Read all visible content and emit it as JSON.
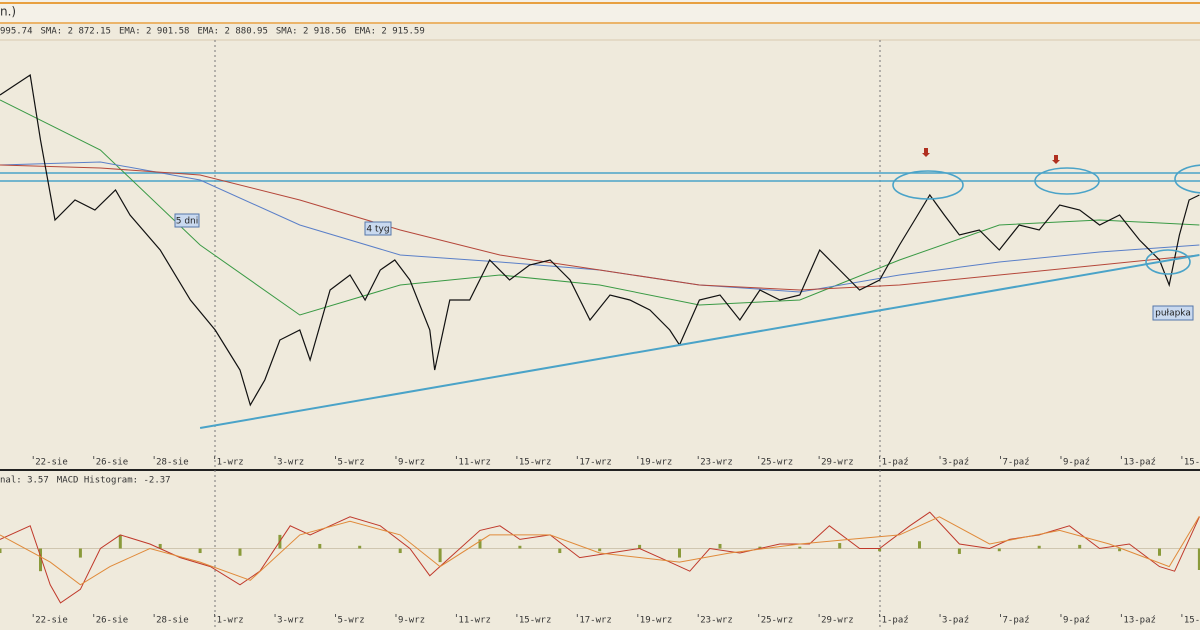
{
  "header": {
    "title": "n.)",
    "indicators": [
      {
        "text": "995.74",
        "color": "#333333"
      },
      {
        "text": "SMA: 2 872.15",
        "color": "#c0392b"
      },
      {
        "text": "EMA: 2 901.58",
        "color": "#2e9e3e"
      },
      {
        "text": "EMA: 2 880.95",
        "color": "#3b6fc4"
      },
      {
        "text": "SMA: 2 918.56",
        "color": "#2e9e3e"
      },
      {
        "text": "EMA: 2 915.59",
        "color": "#c0392b"
      }
    ]
  },
  "annotations": {
    "a": "5 dni",
    "b": "4 tyg",
    "c": "pułapka"
  },
  "chart_data": [
    {
      "type": "line",
      "xlim": [
        -0.55,
        19.3
      ],
      "ylim": [
        2722.5,
        3030
      ],
      "xticks": [
        {
          "value": 0,
          "label": "22-sie"
        },
        {
          "value": 1,
          "label": "26-sie"
        },
        {
          "value": 2,
          "label": "28-sie"
        },
        {
          "value": 3,
          "label": "1-wrz"
        },
        {
          "value": 4,
          "label": "3-wrz"
        },
        {
          "value": 5,
          "label": "5-wrz"
        },
        {
          "value": 6,
          "label": "9-wrz"
        },
        {
          "value": 7,
          "label": "11-wrz"
        },
        {
          "value": 8,
          "label": "15-wrz"
        },
        {
          "value": 9,
          "label": "17-wrz"
        },
        {
          "value": 10,
          "label": "19-wrz"
        },
        {
          "value": 11,
          "label": "23-wrz"
        },
        {
          "value": 12,
          "label": "25-wrz"
        },
        {
          "value": 13,
          "label": "29-wrz"
        },
        {
          "value": 14,
          "label": "1-paź"
        },
        {
          "value": 15,
          "label": "3-paź"
        },
        {
          "value": 16,
          "label": "7-paź"
        },
        {
          "value": 17,
          "label": "9-paź"
        },
        {
          "value": 18,
          "label": "13-paź"
        },
        {
          "value": 19,
          "label": "15-"
        }
      ],
      "levels": [
        2934,
        2928
      ],
      "level_color": "#4aa3c8",
      "trendline": {
        "x": [
          2.76,
          19.29
        ],
        "values": [
          2742.75,
          2872.5
        ],
        "color": "#4aa3c8"
      },
      "series": [
        {
          "name": "Price",
          "color": "#111111",
          "width": 1.2,
          "x": [
            -0.55,
            -0.05,
            0.12,
            0.36,
            0.69,
            1.02,
            1.36,
            1.6,
            2.1,
            2.6,
            3.01,
            3.42,
            3.59,
            3.83,
            4.08,
            4.41,
            4.58,
            4.91,
            5.24,
            5.49,
            5.74,
            5.98,
            6.23,
            6.56,
            6.64,
            6.89,
            7.22,
            7.55,
            7.88,
            8.21,
            8.55,
            8.88,
            9.21,
            9.54,
            9.87,
            10.2,
            10.53,
            10.69,
            11.02,
            11.36,
            11.69,
            12.02,
            12.35,
            12.68,
            13.01,
            13.34,
            13.67,
            14,
            14.33,
            14.58,
            14.83,
            15.07,
            15.32,
            15.65,
            15.98,
            16.31,
            16.64,
            16.98,
            17.31,
            17.64,
            17.97,
            18.3,
            18.63,
            18.79,
            18.96,
            19.12,
            19.29
          ],
          "values": [
            2992.5,
            3007.5,
            2958.75,
            2898.75,
            2913.75,
            2906.25,
            2921.25,
            2902.5,
            2876.25,
            2838.75,
            2816.25,
            2786.25,
            2760,
            2778.75,
            2808.75,
            2816.25,
            2793.75,
            2846.25,
            2857.5,
            2838.75,
            2861.25,
            2868.75,
            2853.75,
            2816.25,
            2786.25,
            2838.75,
            2838.75,
            2868.75,
            2853.75,
            2865,
            2868.75,
            2853.75,
            2823.75,
            2842.5,
            2838.75,
            2831.25,
            2816.25,
            2805,
            2838.75,
            2842.5,
            2823.75,
            2846.25,
            2838.75,
            2842.5,
            2876.25,
            2861.25,
            2846.25,
            2853.75,
            2880,
            2898.75,
            2917.5,
            2902.5,
            2887.5,
            2891.25,
            2876.25,
            2895,
            2891.25,
            2910,
            2906.25,
            2895,
            2902.5,
            2883.75,
            2868.75,
            2850,
            2887.5,
            2913.75,
            2917.5
          ]
        },
        {
          "name": "SMA",
          "color": "#b5473a",
          "width": 1,
          "x": [
            -0.55,
            1.11,
            2.76,
            4.41,
            6.07,
            7.72,
            9.37,
            11.02,
            12.68,
            14.33,
            15.98,
            17.64,
            19.29
          ],
          "values": [
            2940,
            2937.75,
            2932.5,
            2913.75,
            2891.25,
            2872.5,
            2861.25,
            2850,
            2846.25,
            2850,
            2857.5,
            2865,
            2872.5
          ]
        },
        {
          "name": "EMA",
          "color": "#5a7fc8",
          "width": 1,
          "x": [
            -0.55,
            1.11,
            2.76,
            4.41,
            6.07,
            7.72,
            9.37,
            11.02,
            12.68,
            14.33,
            15.98,
            17.64,
            19.29
          ],
          "values": [
            2940,
            2942.25,
            2928.75,
            2895,
            2872.5,
            2867.25,
            2861.25,
            2850,
            2844.75,
            2857.5,
            2867.25,
            2874.75,
            2880
          ]
        },
        {
          "name": "SMA",
          "color": "#3a9a45",
          "width": 1,
          "x": [
            -0.55,
            1.11,
            2.76,
            4.41,
            6.07,
            7.72,
            9.37,
            11.02,
            12.68,
            14.33,
            15.98,
            17.64,
            19.29
          ],
          "values": [
            2988.75,
            2951.25,
            2880,
            2827.5,
            2850,
            2857.5,
            2850,
            2835,
            2838.75,
            2868.75,
            2895,
            2898.75,
            2895
          ]
        }
      ]
    },
    {
      "type": "macd",
      "xlim": [
        -0.55,
        19.3
      ],
      "ylim": [
        -7,
        7
      ],
      "legend": [
        "nal: 3.57",
        "MACD Histogram: -2.37"
      ],
      "xticks": [
        {
          "value": 0,
          "label": "22-sie"
        },
        {
          "value": 1,
          "label": "26-sie"
        },
        {
          "value": 2,
          "label": "28-sie"
        },
        {
          "value": 3,
          "label": "1-wrz"
        },
        {
          "value": 4,
          "label": "3-wrz"
        },
        {
          "value": 5,
          "label": "5-wrz"
        },
        {
          "value": 6,
          "label": "9-wrz"
        },
        {
          "value": 7,
          "label": "11-wrz"
        },
        {
          "value": 8,
          "label": "15-wrz"
        },
        {
          "value": 9,
          "label": "17-wrz"
        },
        {
          "value": 10,
          "label": "19-wrz"
        },
        {
          "value": 11,
          "label": "23-wrz"
        },
        {
          "value": 12,
          "label": "25-wrz"
        },
        {
          "value": 13,
          "label": "29-wrz"
        },
        {
          "value": 14,
          "label": "1-paź"
        },
        {
          "value": 15,
          "label": "3-paź"
        },
        {
          "value": 16,
          "label": "7-paź"
        },
        {
          "value": 17,
          "label": "9-paź"
        },
        {
          "value": 18,
          "label": "13-paź"
        },
        {
          "value": 19,
          "label": "15-"
        }
      ],
      "histogram": {
        "color": "#8a9a3a",
        "x": [
          -0.55,
          0.12,
          0.78,
          1.44,
          2.1,
          2.76,
          3.42,
          4.08,
          4.74,
          5.4,
          6.07,
          6.73,
          7.39,
          8.05,
          8.71,
          9.37,
          10.03,
          10.69,
          11.36,
          12.02,
          12.68,
          13.34,
          14,
          14.66,
          15.32,
          15.98,
          16.64,
          17.31,
          17.97,
          18.63,
          19.29
        ],
        "values": [
          -0.5,
          -2.5,
          -1,
          1.5,
          0.5,
          -0.5,
          -0.8,
          1.5,
          0.5,
          0.3,
          -0.5,
          -1.5,
          1,
          0.3,
          -0.5,
          -0.3,
          0.4,
          -1,
          0.5,
          0.2,
          0.2,
          0.6,
          -0.3,
          0.8,
          -0.6,
          -0.3,
          0.3,
          0.4,
          -0.3,
          -0.8,
          -2.37
        ]
      },
      "series": [
        {
          "name": "MACD",
          "color": "#c0392b",
          "width": 1,
          "x": [
            -0.55,
            -0.05,
            0.28,
            0.45,
            0.78,
            1.11,
            1.44,
            1.93,
            2.43,
            2.93,
            3.42,
            3.75,
            4.25,
            4.58,
            4.91,
            5.24,
            5.74,
            6.23,
            6.56,
            6.89,
            7.39,
            7.72,
            8.05,
            8.55,
            9.04,
            9.54,
            10.03,
            10.53,
            10.86,
            11.19,
            11.69,
            12.35,
            12.84,
            13.17,
            13.67,
            14,
            14.5,
            14.83,
            15.32,
            15.82,
            16.15,
            16.64,
            17.14,
            17.64,
            18.13,
            18.63,
            18.88,
            19.29
          ],
          "values": [
            1,
            2.5,
            -4,
            -6,
            -4.5,
            0,
            1.5,
            0.5,
            -1,
            -2,
            -4,
            -2.5,
            2.5,
            1.5,
            2.5,
            3.5,
            2.5,
            0,
            -3,
            -1,
            2,
            2.5,
            1,
            1.5,
            -1,
            -0.5,
            0,
            -1.5,
            -2.5,
            0,
            -0.5,
            0.5,
            0.5,
            2.5,
            0,
            0,
            2.5,
            4,
            0.5,
            0,
            1,
            1.5,
            2.5,
            0,
            0.5,
            -2,
            -2.5,
            3.5
          ]
        },
        {
          "name": "Signal",
          "color": "#e08a3a",
          "width": 1,
          "x": [
            -0.55,
            0.28,
            0.78,
            1.27,
            1.93,
            2.76,
            3.59,
            4.41,
            5.24,
            6.07,
            6.73,
            7.55,
            8.55,
            9.37,
            10.69,
            11.52,
            12.68,
            13.5,
            14.33,
            14.99,
            15.82,
            16.98,
            17.8,
            18.79,
            19.29
          ],
          "values": [
            1.5,
            -1.5,
            -4,
            -2,
            0,
            -1.5,
            -3.5,
            1.5,
            3,
            1.5,
            -2,
            1.5,
            1.5,
            -0.5,
            -1.5,
            -0.5,
            0.5,
            1,
            1.5,
            3.5,
            0.5,
            2,
            0.5,
            -2,
            3.57
          ]
        }
      ]
    }
  ]
}
